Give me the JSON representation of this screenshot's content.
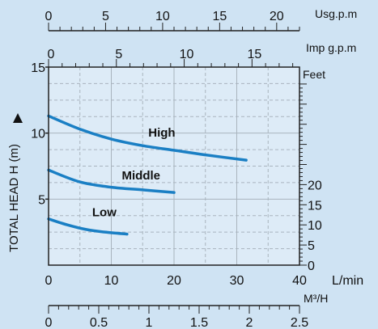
{
  "chart_data": {
    "type": "line",
    "ylabel": "TOTAL HEAD H (m)",
    "x_axis": {
      "unit": "L/min",
      "range": [
        0,
        40
      ],
      "ticks": [
        "0",
        "10",
        "20",
        "30",
        "40"
      ]
    },
    "y_axis": {
      "unit": "m",
      "range": [
        0,
        15
      ],
      "ticks": [
        "5",
        "10",
        "15"
      ]
    },
    "secondary_axes": {
      "usgpm": {
        "unit": "Usg.p.m",
        "range": [
          0,
          22
        ],
        "ticks": [
          "0",
          "5",
          "10",
          "15",
          "20"
        ]
      },
      "impgpm": {
        "unit": "Imp g.p.m",
        "range": [
          0,
          18.5
        ],
        "ticks": [
          "0",
          "5",
          "10",
          "15"
        ]
      },
      "feet": {
        "unit": "Feet",
        "range": [
          0,
          49.2
        ],
        "ticks": [
          "0",
          "5",
          "10",
          "15",
          "20"
        ]
      },
      "m3h": {
        "unit": "M³/H",
        "range": [
          0,
          2.5
        ],
        "ticks": [
          "0",
          "0.5",
          "1",
          "1.5",
          "2",
          "2.5"
        ]
      }
    },
    "series": [
      {
        "name": "High",
        "x": [
          0,
          5,
          10,
          15,
          20,
          25,
          31.5
        ],
        "y": [
          11.3,
          10.3,
          9.55,
          9.05,
          8.7,
          8.35,
          7.95
        ]
      },
      {
        "name": "Middle",
        "x": [
          0,
          5,
          10,
          15,
          20
        ],
        "y": [
          7.2,
          6.3,
          5.9,
          5.7,
          5.5
        ]
      },
      {
        "name": "Low",
        "x": [
          0,
          3,
          6,
          9,
          12.5
        ],
        "y": [
          3.5,
          3.05,
          2.7,
          2.5,
          2.35
        ]
      }
    ],
    "grid": true,
    "colors": {
      "curve": "#1a7fc4",
      "background": "#cfe3f3",
      "plot_bg": "#ddebf7",
      "grid": "#a9b4be",
      "axis": "#222222"
    }
  }
}
